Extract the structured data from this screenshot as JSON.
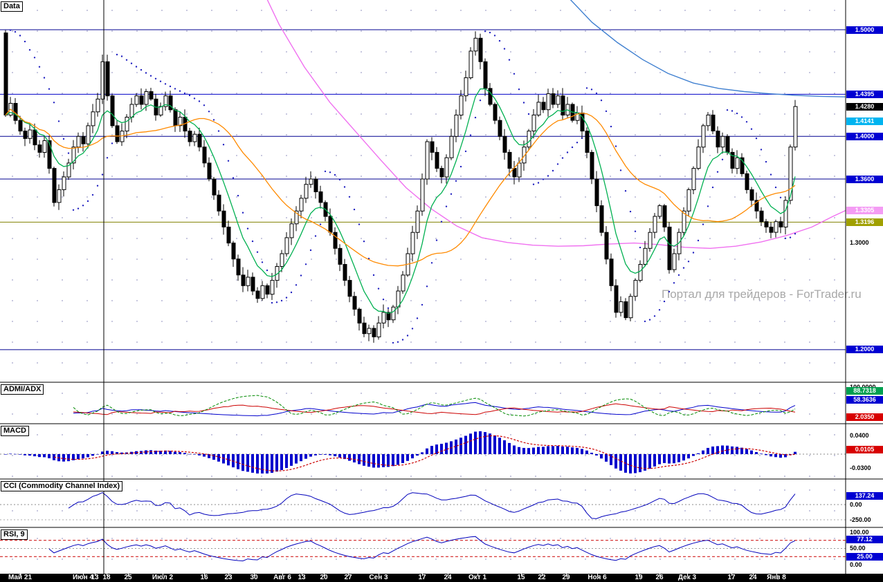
{
  "watermark": "Портал для трейдеров - ForTrader.ru",
  "colors": {
    "up_candle": "#ffffff",
    "down_candle": "#000000",
    "ma_fast_green": "#00b050",
    "ma_mid_orange": "#ff8a00",
    "psar": "#2020c0",
    "adx_green": "#008a00",
    "di_blue": "#0000cc",
    "di_red": "#cc0000",
    "macd_bar": "#0000cc",
    "macd_signal": "#cc0000",
    "osc_blue": "#0000bb",
    "rsi_level_red": "#cc0000",
    "grid_dot": "#5a5aa0",
    "separator": "#000000"
  },
  "panels": {
    "main": {
      "label": "Data",
      "badges": [
        {
          "text": "1.5000",
          "value": 1.5,
          "style": "blue"
        },
        {
          "text": "1.4395",
          "value": 1.4395,
          "style": "blue"
        },
        {
          "text": "1.4280",
          "value": 1.428,
          "style": "black"
        },
        {
          "text": "1.4141",
          "value": 1.4141,
          "style": "cyan"
        },
        {
          "text": "1.4000",
          "value": 1.4,
          "style": "blue"
        },
        {
          "text": "1.3600",
          "value": 1.36,
          "style": "blue"
        },
        {
          "text": "1.3305",
          "value": 1.3305,
          "style": "pink"
        },
        {
          "text": "1.3196",
          "value": 1.3196,
          "style": "olive"
        },
        {
          "text": "1.3000",
          "value": 1.3,
          "style": "plain"
        },
        {
          "text": "1.2000",
          "value": 1.2,
          "style": "blue"
        }
      ]
    },
    "adx": {
      "label": "ADMI/ADX",
      "badges": [
        {
          "text": "100.0000",
          "value": 100,
          "style": "plain"
        },
        {
          "text": "88.7318",
          "value": 88.7318,
          "style": "green"
        },
        {
          "text": "58.3636",
          "value": 58.3636,
          "style": "blue"
        },
        {
          "text": "2.0350",
          "value": 2.035,
          "style": "red"
        }
      ]
    },
    "macd": {
      "label": "MACD",
      "badges": [
        {
          "text": "0.0400",
          "value": 0.04,
          "style": "plain"
        },
        {
          "text": "0.0105",
          "value": 0.0105,
          "style": "red"
        },
        {
          "text": "-0.0300",
          "value": -0.03,
          "style": "plain"
        }
      ]
    },
    "cci": {
      "label": "CCI (Commodity Channel Index)",
      "badges": [
        {
          "text": "137.24",
          "value": 137.24,
          "style": "blue"
        },
        {
          "text": "0.00",
          "value": 0,
          "style": "plain"
        },
        {
          "text": "-250.00",
          "value": -250,
          "style": "plain"
        }
      ]
    },
    "rsi": {
      "label": "RSI, 9",
      "badges": [
        {
          "text": "100.00",
          "value": 100,
          "style": "plain"
        },
        {
          "text": "77.12",
          "value": 77.12,
          "style": "blue"
        },
        {
          "text": "50.00",
          "value": 50,
          "style": "plain"
        },
        {
          "text": "25.00",
          "value": 25,
          "style": "blue"
        },
        {
          "text": "0.00",
          "value": 0,
          "style": "plain"
        }
      ]
    }
  },
  "x_axis": {
    "labels": [
      {
        "text": "Май 21",
        "pos": 0.023
      },
      {
        "text": "Июн 4",
        "pos": 0.094
      },
      {
        "text": "13",
        "pos": 0.107
      },
      {
        "text": "18",
        "pos": 0.121
      },
      {
        "text": "25",
        "pos": 0.145
      },
      {
        "text": "Июл 2",
        "pos": 0.184
      },
      {
        "text": "16",
        "pos": 0.231
      },
      {
        "text": "23",
        "pos": 0.259
      },
      {
        "text": "30",
        "pos": 0.288
      },
      {
        "text": "Авг 6",
        "pos": 0.32
      },
      {
        "text": "13",
        "pos": 0.342
      },
      {
        "text": "20",
        "pos": 0.367
      },
      {
        "text": "27",
        "pos": 0.394
      },
      {
        "text": "Сен 3",
        "pos": 0.429
      },
      {
        "text": "17",
        "pos": 0.478
      },
      {
        "text": "24",
        "pos": 0.507
      },
      {
        "text": "Окт 1",
        "pos": 0.541
      },
      {
        "text": "15",
        "pos": 0.59
      },
      {
        "text": "22",
        "pos": 0.614
      },
      {
        "text": "29",
        "pos": 0.641
      },
      {
        "text": "Ноя 6",
        "pos": 0.676
      },
      {
        "text": "19",
        "pos": 0.723
      },
      {
        "text": "26",
        "pos": 0.747
      },
      {
        "text": "Дек 3",
        "pos": 0.778
      },
      {
        "text": "17",
        "pos": 0.828
      },
      {
        "text": "24",
        "pos": 0.853
      },
      {
        "text": "Янв 8",
        "pos": 0.879
      }
    ]
  },
  "chart_data": {
    "type": "candlestick",
    "last_price": 1.428,
    "price_axis_range": [
      1.171,
      1.528
    ],
    "first_open": 1.497,
    "closes": [
      1.42,
      1.431,
      1.415,
      1.405,
      1.398,
      1.406,
      1.392,
      1.385,
      1.396,
      1.37,
      1.338,
      1.35,
      1.362,
      1.375,
      1.39,
      1.4,
      1.393,
      1.41,
      1.423,
      1.435,
      1.47,
      1.438,
      1.41,
      1.395,
      1.405,
      1.418,
      1.43,
      1.438,
      1.43,
      1.442,
      1.435,
      1.42,
      1.428,
      1.438,
      1.425,
      1.41,
      1.418,
      1.405,
      1.395,
      1.402,
      1.39,
      1.375,
      1.36,
      1.345,
      1.33,
      1.315,
      1.3,
      1.285,
      1.27,
      1.26,
      1.268,
      1.255,
      1.248,
      1.26,
      1.252,
      1.265,
      1.278,
      1.29,
      1.305,
      1.318,
      1.33,
      1.342,
      1.355,
      1.36,
      1.348,
      1.338,
      1.325,
      1.31,
      1.295,
      1.28,
      1.265,
      1.25,
      1.238,
      1.225,
      1.215,
      1.22,
      1.212,
      1.225,
      1.235,
      1.228,
      1.24,
      1.255,
      1.27,
      1.29,
      1.31,
      1.33,
      1.36,
      1.395,
      1.385,
      1.37,
      1.362,
      1.38,
      1.4,
      1.42,
      1.438,
      1.455,
      1.48,
      1.492,
      1.47,
      1.445,
      1.43,
      1.415,
      1.4,
      1.385,
      1.37,
      1.362,
      1.375,
      1.39,
      1.405,
      1.42,
      1.432,
      1.425,
      1.44,
      1.43,
      1.438,
      1.42,
      1.43,
      1.415,
      1.422,
      1.405,
      1.385,
      1.36,
      1.335,
      1.31,
      1.285,
      1.26,
      1.235,
      1.245,
      1.23,
      1.25,
      1.265,
      1.28,
      1.295,
      1.31,
      1.325,
      1.335,
      1.315,
      1.275,
      1.29,
      1.31,
      1.33,
      1.35,
      1.37,
      1.39,
      1.41,
      1.42,
      1.405,
      1.39,
      1.4,
      1.385,
      1.37,
      1.38,
      1.365,
      1.35,
      1.34,
      1.33,
      1.32,
      1.315,
      1.31,
      1.32,
      1.315,
      1.34,
      1.39,
      1.428
    ],
    "levels": [
      {
        "price": 1.5,
        "color": "#000090"
      },
      {
        "price": 1.4395,
        "color": "#0000c8"
      },
      {
        "price": 1.4,
        "color": "#000090"
      },
      {
        "price": 1.36,
        "color": "#000090"
      },
      {
        "price": 1.2,
        "color": "#000090"
      },
      {
        "price": 1.3196,
        "color": "#808000"
      }
    ],
    "magenta_ma": {
      "color": "#f070f0",
      "points": [
        [
          0.315,
          1.53
        ],
        [
          0.33,
          1.505
        ],
        [
          0.36,
          1.465
        ],
        [
          0.39,
          1.432
        ],
        [
          0.42,
          1.405
        ],
        [
          0.45,
          1.378
        ],
        [
          0.48,
          1.352
        ],
        [
          0.51,
          1.332
        ],
        [
          0.54,
          1.316
        ],
        [
          0.57,
          1.305
        ],
        [
          0.6,
          1.3005
        ],
        [
          0.63,
          1.298
        ],
        [
          0.66,
          1.297
        ],
        [
          0.69,
          1.2975
        ],
        [
          0.72,
          1.299
        ],
        [
          0.75,
          1.3
        ],
        [
          0.78,
          1.2985
        ],
        [
          0.81,
          1.296
        ],
        [
          0.84,
          1.295
        ],
        [
          0.87,
          1.297
        ],
        [
          0.9,
          1.301
        ],
        [
          0.93,
          1.307
        ],
        [
          0.96,
          1.315
        ],
        [
          0.985,
          1.325
        ],
        [
          1.0,
          1.3305
        ]
      ]
    },
    "blue_ma": {
      "color": "#4080d0",
      "points": [
        [
          0.67,
          1.532
        ],
        [
          0.7,
          1.507
        ],
        [
          0.73,
          1.488
        ],
        [
          0.76,
          1.472
        ],
        [
          0.79,
          1.459
        ],
        [
          0.82,
          1.45
        ],
        [
          0.85,
          1.445
        ],
        [
          0.88,
          1.442
        ],
        [
          0.91,
          1.44
        ],
        [
          0.94,
          1.4385
        ],
        [
          0.97,
          1.4375
        ],
        [
          1.0,
          1.437
        ]
      ]
    },
    "indicators": {
      "adx": {
        "period": 14
      },
      "macd": {
        "fast": 12,
        "slow": 26,
        "signal": 9
      },
      "cci": {
        "period": 14
      },
      "rsi": {
        "period": 9,
        "levels": [
          75,
          25
        ]
      }
    }
  }
}
